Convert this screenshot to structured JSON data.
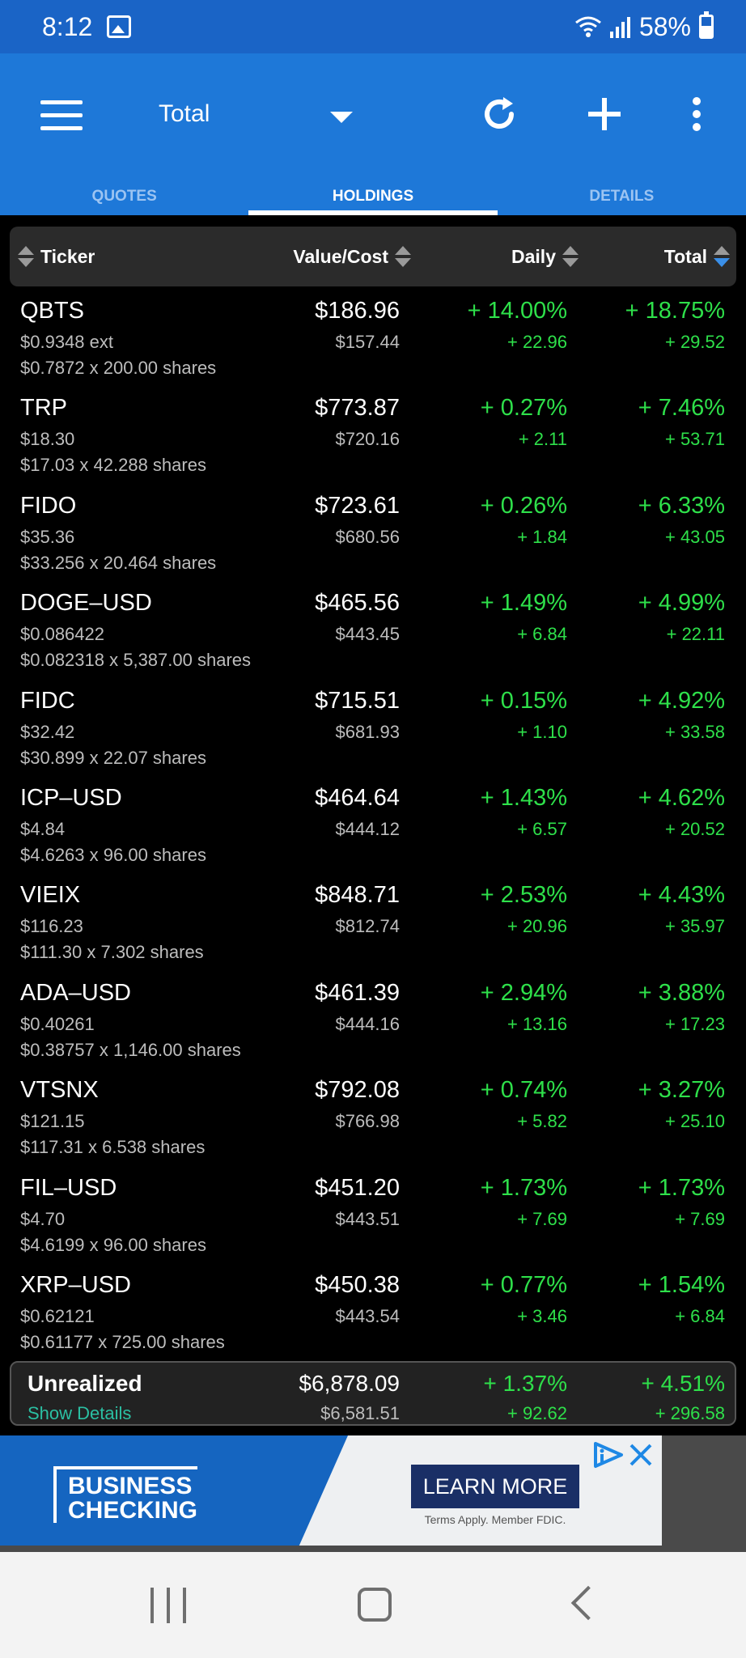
{
  "status_bar": {
    "time": "8:12",
    "battery": "58%"
  },
  "app_bar": {
    "title": "Total"
  },
  "tabs": [
    {
      "label": "QUOTES",
      "active": false
    },
    {
      "label": "HOLDINGS",
      "active": true
    },
    {
      "label": "DETAILS",
      "active": false
    }
  ],
  "table_header": {
    "ticker": "Ticker",
    "value_cost": "Value/Cost",
    "daily": "Daily",
    "total": "Total",
    "sorted_by": "Total"
  },
  "holdings": [
    {
      "ticker": "QBTS",
      "price": "$0.9348 ext",
      "cost_line": "$0.7872 x 200.00 shares",
      "value": "$186.96",
      "cost": "$157.44",
      "daily_pct": "+ 14.00%",
      "daily_abs": "+ 22.96",
      "total_pct": "+ 18.75%",
      "total_abs": "+ 29.52"
    },
    {
      "ticker": "TRP",
      "price": "$18.30",
      "cost_line": "$17.03 x 42.288 shares",
      "value": "$773.87",
      "cost": "$720.16",
      "daily_pct": "+ 0.27%",
      "daily_abs": "+ 2.11",
      "total_pct": "+ 7.46%",
      "total_abs": "+ 53.71"
    },
    {
      "ticker": "FIDO",
      "price": "$35.36",
      "cost_line": "$33.256 x 20.464 shares",
      "value": "$723.61",
      "cost": "$680.56",
      "daily_pct": "+ 0.26%",
      "daily_abs": "+ 1.84",
      "total_pct": "+ 6.33%",
      "total_abs": "+ 43.05"
    },
    {
      "ticker": "DOGE–USD",
      "price": "$0.086422",
      "cost_line": "$0.082318 x 5,387.00 shares",
      "value": "$465.56",
      "cost": "$443.45",
      "daily_pct": "+ 1.49%",
      "daily_abs": "+ 6.84",
      "total_pct": "+ 4.99%",
      "total_abs": "+ 22.11"
    },
    {
      "ticker": "FIDC",
      "price": "$32.42",
      "cost_line": "$30.899 x 22.07 shares",
      "value": "$715.51",
      "cost": "$681.93",
      "daily_pct": "+ 0.15%",
      "daily_abs": "+ 1.10",
      "total_pct": "+ 4.92%",
      "total_abs": "+ 33.58"
    },
    {
      "ticker": "ICP–USD",
      "price": "$4.84",
      "cost_line": "$4.6263 x 96.00 shares",
      "value": "$464.64",
      "cost": "$444.12",
      "daily_pct": "+ 1.43%",
      "daily_abs": "+ 6.57",
      "total_pct": "+ 4.62%",
      "total_abs": "+ 20.52"
    },
    {
      "ticker": "VIEIX",
      "price": "$116.23",
      "cost_line": "$111.30 x 7.302 shares",
      "value": "$848.71",
      "cost": "$812.74",
      "daily_pct": "+ 2.53%",
      "daily_abs": "+ 20.96",
      "total_pct": "+ 4.43%",
      "total_abs": "+ 35.97"
    },
    {
      "ticker": "ADA–USD",
      "price": "$0.40261",
      "cost_line": "$0.38757 x 1,146.00 shares",
      "value": "$461.39",
      "cost": "$444.16",
      "daily_pct": "+ 2.94%",
      "daily_abs": "+ 13.16",
      "total_pct": "+ 3.88%",
      "total_abs": "+ 17.23"
    },
    {
      "ticker": "VTSNX",
      "price": "$121.15",
      "cost_line": "$117.31 x 6.538 shares",
      "value": "$792.08",
      "cost": "$766.98",
      "daily_pct": "+ 0.74%",
      "daily_abs": "+ 5.82",
      "total_pct": "+ 3.27%",
      "total_abs": "+ 25.10"
    },
    {
      "ticker": "FIL–USD",
      "price": "$4.70",
      "cost_line": "$4.6199 x 96.00 shares",
      "value": "$451.20",
      "cost": "$443.51",
      "daily_pct": "+ 1.73%",
      "daily_abs": "+ 7.69",
      "total_pct": "+ 1.73%",
      "total_abs": "+ 7.69"
    },
    {
      "ticker": "XRP–USD",
      "price": "$0.62121",
      "cost_line": "$0.61177 x 725.00 shares",
      "value": "$450.38",
      "cost": "$443.54",
      "daily_pct": "+ 0.77%",
      "daily_abs": "+ 3.46",
      "total_pct": "+ 1.54%",
      "total_abs": "+ 6.84"
    }
  ],
  "summary": {
    "label": "Unrealized",
    "link": "Show Details",
    "value": "$6,878.09",
    "cost": "$6,581.51",
    "daily_pct": "+ 1.37%",
    "daily_abs": "+ 92.62",
    "total_pct": "+ 4.51%",
    "total_abs": "+ 296.58"
  },
  "ad": {
    "logo_line1": "BUSINESS",
    "logo_line2": "CHECKING",
    "button": "LEARN MORE",
    "fine_print": "Terms Apply. Member FDIC."
  },
  "icons": {
    "menu": "hamburger-icon",
    "dropdown": "caret-down-icon",
    "refresh": "refresh-icon",
    "add": "plus-icon",
    "more": "kebab-icon"
  },
  "colors": {
    "status_bar": "#1a64c6",
    "app_bar": "#1e78d8",
    "gain": "#2ee04a",
    "link": "#2bbfa2",
    "sort_active": "#3a8fe8"
  }
}
